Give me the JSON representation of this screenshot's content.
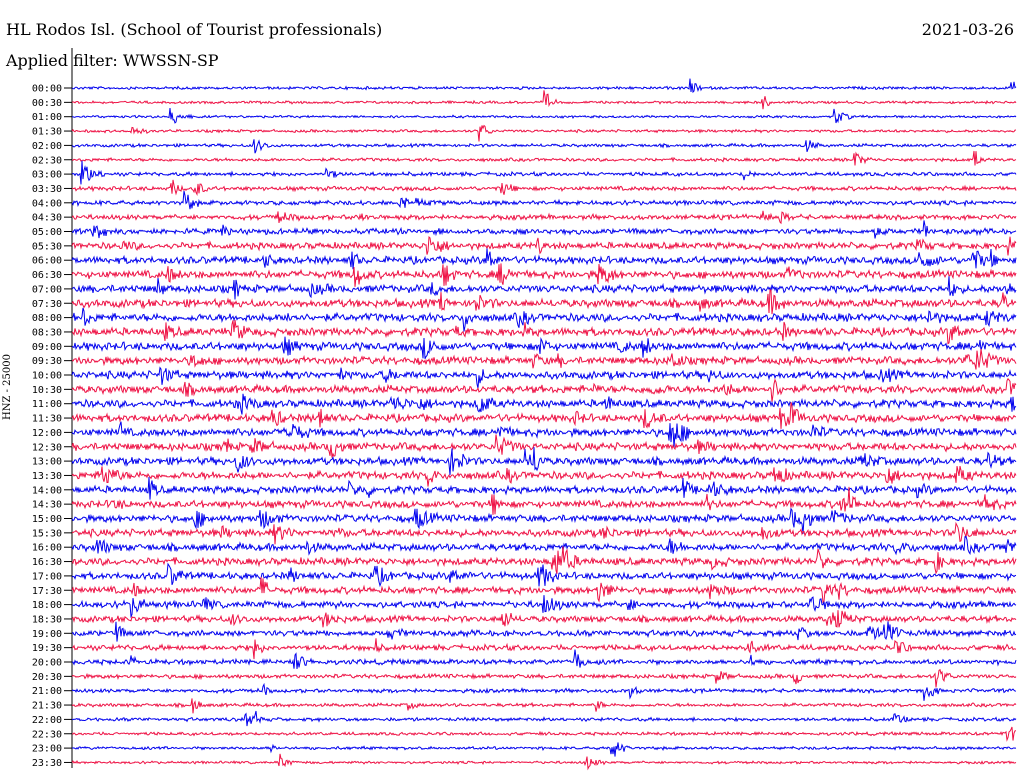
{
  "header": {
    "station": "HL Rodos Isl. (School of Tourist professionals)",
    "filter": "Applied filter: WWSSN-SP",
    "date": "2021-03-26"
  },
  "colors": {
    "blue": "#0000ee",
    "red": "#ee1144"
  },
  "chart_data": {
    "type": "line",
    "ylabel": "HNZ - 25000",
    "rows": [
      {
        "time": "00:00",
        "color": "blue",
        "activity": 0.15
      },
      {
        "time": "00:30",
        "color": "red",
        "activity": 0.12
      },
      {
        "time": "01:00",
        "color": "blue",
        "activity": 0.1
      },
      {
        "time": "01:30",
        "color": "red",
        "activity": 0.15
      },
      {
        "time": "02:00",
        "color": "blue",
        "activity": 0.2
      },
      {
        "time": "02:30",
        "color": "red",
        "activity": 0.22
      },
      {
        "time": "03:00",
        "color": "blue",
        "activity": 0.3
      },
      {
        "time": "03:30",
        "color": "red",
        "activity": 0.35
      },
      {
        "time": "04:00",
        "color": "blue",
        "activity": 0.4
      },
      {
        "time": "04:30",
        "color": "red",
        "activity": 0.45
      },
      {
        "time": "05:00",
        "color": "blue",
        "activity": 0.55
      },
      {
        "time": "05:30",
        "color": "red",
        "activity": 0.7
      },
      {
        "time": "06:00",
        "color": "blue",
        "activity": 0.8
      },
      {
        "time": "06:30",
        "color": "red",
        "activity": 0.85
      },
      {
        "time": "07:00",
        "color": "blue",
        "activity": 0.85
      },
      {
        "time": "07:30",
        "color": "red",
        "activity": 0.9
      },
      {
        "time": "08:00",
        "color": "blue",
        "activity": 0.9
      },
      {
        "time": "08:30",
        "color": "red",
        "activity": 0.9
      },
      {
        "time": "09:00",
        "color": "blue",
        "activity": 0.9
      },
      {
        "time": "09:30",
        "color": "red",
        "activity": 0.85
      },
      {
        "time": "10:00",
        "color": "blue",
        "activity": 0.85
      },
      {
        "time": "10:30",
        "color": "red",
        "activity": 0.85
      },
      {
        "time": "11:00",
        "color": "blue",
        "activity": 0.85
      },
      {
        "time": "11:30",
        "color": "red",
        "activity": 0.85
      },
      {
        "time": "12:00",
        "color": "blue",
        "activity": 0.85
      },
      {
        "time": "12:30",
        "color": "red",
        "activity": 0.85
      },
      {
        "time": "13:00",
        "color": "blue",
        "activity": 0.85
      },
      {
        "time": "13:30",
        "color": "red",
        "activity": 0.85
      },
      {
        "time": "14:00",
        "color": "blue",
        "activity": 0.8
      },
      {
        "time": "14:30",
        "color": "red",
        "activity": 0.8
      },
      {
        "time": "15:00",
        "color": "blue",
        "activity": 0.8
      },
      {
        "time": "15:30",
        "color": "red",
        "activity": 0.8
      },
      {
        "time": "16:00",
        "color": "blue",
        "activity": 0.8
      },
      {
        "time": "16:30",
        "color": "red",
        "activity": 0.8
      },
      {
        "time": "17:00",
        "color": "blue",
        "activity": 0.75
      },
      {
        "time": "17:30",
        "color": "red",
        "activity": 0.75
      },
      {
        "time": "18:00",
        "color": "blue",
        "activity": 0.7
      },
      {
        "time": "18:30",
        "color": "red",
        "activity": 0.65
      },
      {
        "time": "19:00",
        "color": "blue",
        "activity": 0.6
      },
      {
        "time": "19:30",
        "color": "red",
        "activity": 0.55
      },
      {
        "time": "20:00",
        "color": "blue",
        "activity": 0.45
      },
      {
        "time": "20:30",
        "color": "red",
        "activity": 0.35
      },
      {
        "time": "21:00",
        "color": "blue",
        "activity": 0.3
      },
      {
        "time": "21:30",
        "color": "red",
        "activity": 0.25
      },
      {
        "time": "22:00",
        "color": "blue",
        "activity": 0.25
      },
      {
        "time": "22:30",
        "color": "red",
        "activity": 0.2
      },
      {
        "time": "23:00",
        "color": "blue",
        "activity": 0.18
      },
      {
        "time": "23:30",
        "color": "red",
        "activity": 0.12
      }
    ]
  }
}
